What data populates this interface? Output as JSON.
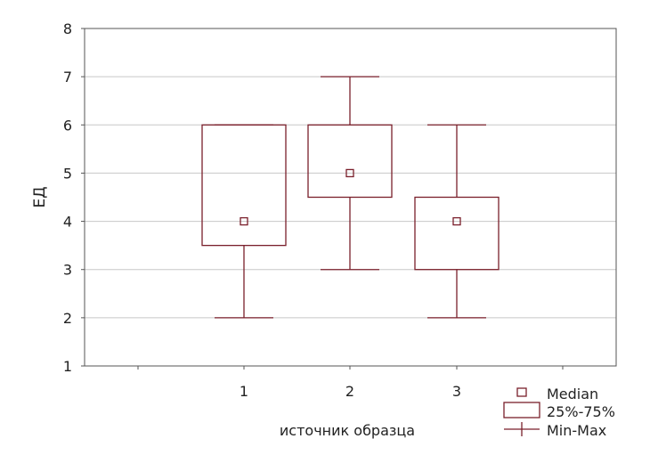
{
  "chart_data": {
    "type": "boxplot",
    "xlabel": "источник образца",
    "ylabel": "ЕД",
    "ylim": [
      1,
      8
    ],
    "yticks": [
      1,
      2,
      3,
      4,
      5,
      6,
      7,
      8
    ],
    "categories": [
      "1",
      "2",
      "3"
    ],
    "boxes": [
      {
        "category": "1",
        "min": 2,
        "q1": 3.5,
        "median": 4,
        "q3": 6,
        "max": 6
      },
      {
        "category": "2",
        "min": 3,
        "q1": 4.5,
        "median": 5,
        "q3": 6,
        "max": 7
      },
      {
        "category": "3",
        "min": 2,
        "q1": 3,
        "median": 4,
        "q3": 4.5,
        "max": 6
      }
    ],
    "grid": true,
    "legend_position": "bottom-right",
    "legend": {
      "median": "Median",
      "box": "25%-75%",
      "whisker": "Min-Max"
    },
    "colors": {
      "box": "#7a1f2b",
      "grid": "#c8c8c8",
      "axis": "#555555"
    }
  }
}
